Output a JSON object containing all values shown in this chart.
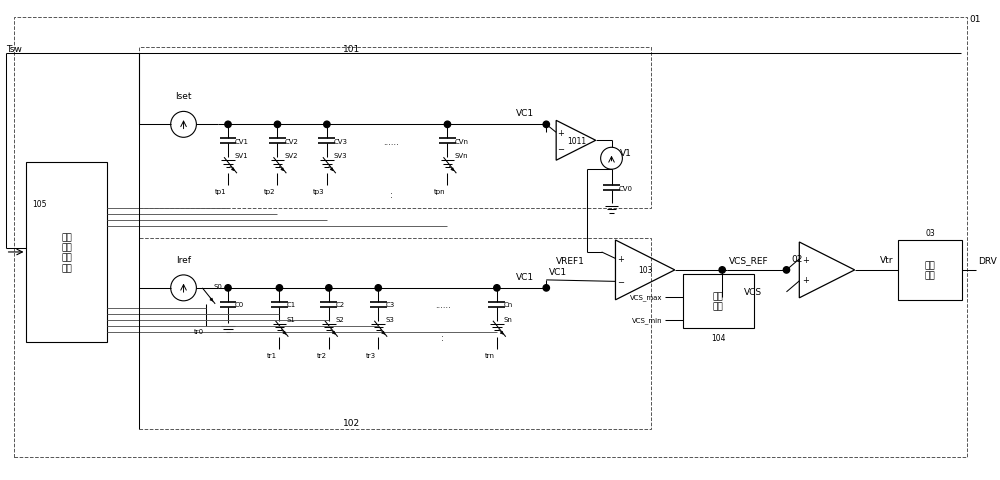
{
  "fig_width": 10.0,
  "fig_height": 4.81,
  "dpi": 100,
  "bg": "#ffffff",
  "lc": "#000000",
  "dc": "#666666",
  "fs": 6.5,
  "labels": {
    "tsw": "Tsw",
    "iset": "Iset",
    "iref": "Iref",
    "vc1": "VC1",
    "vref1": "VREF1",
    "vcs_ref": "VCS_REF",
    "vcs": "VCS",
    "vtr": "Vtr",
    "drv": "DRV",
    "cv0": "CV0",
    "cv1": "CV1",
    "cv2": "CV2",
    "cv3": "CV3",
    "cvn": "CVn",
    "c0": "C0",
    "c1": "C1",
    "c2": "C2",
    "c3": "C3",
    "cn": "Cn",
    "sv1": "SV1",
    "sv2": "SV2",
    "sv3": "SV3",
    "svn": "SVn",
    "s0": "S0",
    "s1": "S1",
    "s2": "S2",
    "s3": "S3",
    "sn": "Sn",
    "tp1": "tp1",
    "tp2": "tp2",
    "tp3": "tp3",
    "tpn": "tpn",
    "tr0": "tr0",
    "tr1": "tr1",
    "tr2": "tr2",
    "tr3": "tr3",
    "trn": "trn",
    "n01": "01",
    "n02": "02",
    "n03": "03",
    "n101": "101",
    "n102": "102",
    "n103": "103",
    "n104": "104",
    "n105": "105",
    "n1011": "1011",
    "v1": "V1",
    "vcs_max": "VCS_max",
    "vcs_min": "VCS_min",
    "box105": "开关\n信号\n产生\n电路",
    "box104": "钓位\n电路",
    "box03": "驱动\n电路"
  }
}
